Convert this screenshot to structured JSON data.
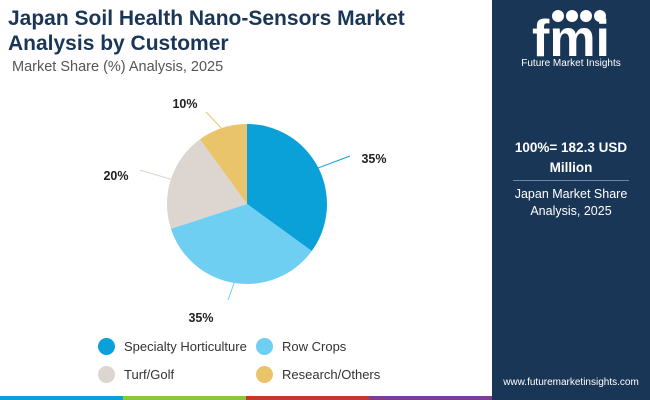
{
  "header": {
    "title": "Japan Soil Health Nano-Sensors Market Analysis by Customer",
    "subtitle": "Market Share (%) Analysis, 2025"
  },
  "chart_data": {
    "type": "pie",
    "title": "Japan Soil Health Nano-Sensors Market Analysis by Customer",
    "subtitle": "Market Share (%) Analysis, 2025",
    "categories": [
      "Specialty Horticulture",
      "Row Crops",
      "Turf/Golf",
      "Research/Others"
    ],
    "values": [
      35,
      35,
      20,
      10
    ],
    "labels": [
      "35%",
      "35%",
      "20%",
      "10%"
    ],
    "colors": [
      "#0aa0d8",
      "#6ecff3",
      "#ddd5cf",
      "#e9c46a"
    ],
    "legend_position": "bottom"
  },
  "side_panel": {
    "brand": "fmi",
    "brand_tagline": "Future Market Insights",
    "total_label": "100%= 182.3 USD Million",
    "description": "Japan Market Share Analysis, 2025",
    "url": "www.futuremarketinsights.com"
  },
  "bottom_bar_colors": [
    "#0aa0d8",
    "#8cc63f",
    "#c0392b",
    "#7d3c98"
  ]
}
